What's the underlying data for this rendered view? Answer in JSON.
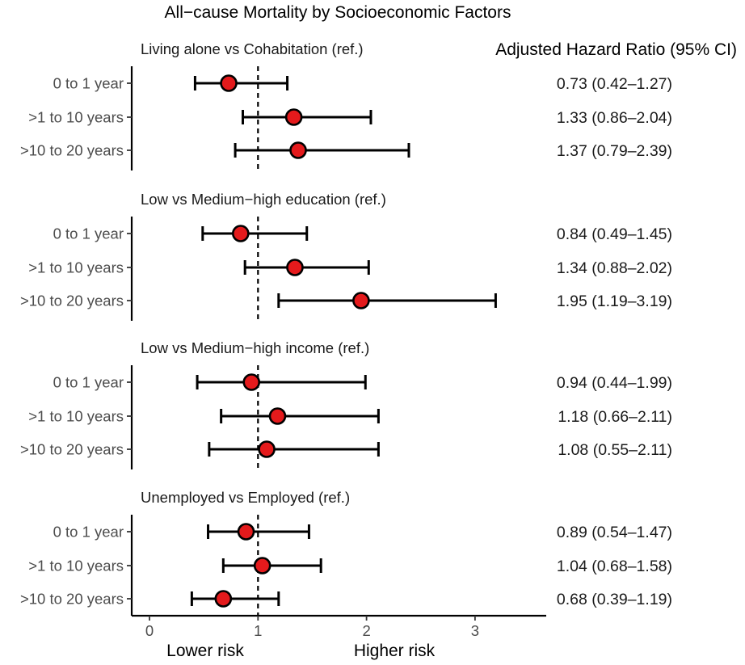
{
  "chart_data": {
    "type": "forest",
    "title": "All−cause Mortality by Socioeconomic Factors",
    "hr_header": "Adjusted Hazard Ratio (95% CI)",
    "x_ticks": [
      "0",
      "1",
      "2",
      "3"
    ],
    "x_tick_values": [
      0,
      1,
      2,
      3
    ],
    "xlim": [
      -0.15,
      3.65
    ],
    "reference_value": 1,
    "lower_risk_label": "Lower risk",
    "higher_risk_label": "Higher risk",
    "panels": [
      {
        "title": "Living alone vs Cohabitation (ref.)",
        "rows": [
          {
            "label": "0 to 1 year",
            "hr": 0.73,
            "lo": 0.42,
            "hi": 1.27,
            "text": "0.73 (0.42–1.27)"
          },
          {
            "label": ">1 to 10 years",
            "hr": 1.33,
            "lo": 0.86,
            "hi": 2.04,
            "text": "1.33 (0.86–2.04)"
          },
          {
            "label": ">10 to 20 years",
            "hr": 1.37,
            "lo": 0.79,
            "hi": 2.39,
            "text": "1.37 (0.79–2.39)"
          }
        ]
      },
      {
        "title": "Low vs Medium−high education (ref.)",
        "rows": [
          {
            "label": "0 to 1 year",
            "hr": 0.84,
            "lo": 0.49,
            "hi": 1.45,
            "text": "0.84 (0.49–1.45)"
          },
          {
            "label": ">1 to 10 years",
            "hr": 1.34,
            "lo": 0.88,
            "hi": 2.02,
            "text": "1.34 (0.88–2.02)"
          },
          {
            "label": ">10 to 20 years",
            "hr": 1.95,
            "lo": 1.19,
            "hi": 3.19,
            "text": "1.95 (1.19–3.19)"
          }
        ]
      },
      {
        "title": "Low vs Medium−high income (ref.)",
        "rows": [
          {
            "label": "0 to 1 year",
            "hr": 0.94,
            "lo": 0.44,
            "hi": 1.99,
            "text": "0.94 (0.44–1.99)"
          },
          {
            "label": ">1 to 10 years",
            "hr": 1.18,
            "lo": 0.66,
            "hi": 2.11,
            "text": "1.18 (0.66–2.11)"
          },
          {
            "label": ">10 to 20 years",
            "hr": 1.08,
            "lo": 0.55,
            "hi": 2.11,
            "text": "1.08 (0.55–2.11)"
          }
        ]
      },
      {
        "title": "Unemployed vs Employed (ref.)",
        "rows": [
          {
            "label": "0 to 1 year",
            "hr": 0.89,
            "lo": 0.54,
            "hi": 1.47,
            "text": "0.89 (0.54–1.47)"
          },
          {
            "label": ">1 to 10 years",
            "hr": 1.04,
            "lo": 0.68,
            "hi": 1.58,
            "text": "1.04 (0.68–1.58)"
          },
          {
            "label": ">10 to 20 years",
            "hr": 0.68,
            "lo": 0.39,
            "hi": 1.19,
            "text": "0.68 (0.39–1.19)"
          }
        ]
      }
    ],
    "colors": {
      "point_fill": "#e41a1c",
      "point_stroke": "#000000",
      "line": "#000000"
    }
  }
}
